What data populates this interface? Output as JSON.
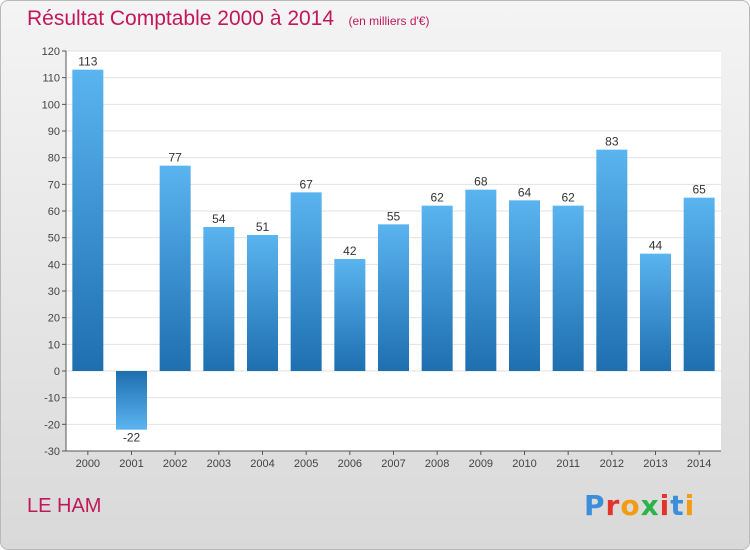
{
  "chart_data": {
    "type": "bar",
    "title": "Résultat Comptable 2000 à 2014",
    "subtitle": "(en milliers d'€)",
    "categories": [
      "2000",
      "2001",
      "2002",
      "2003",
      "2004",
      "2005",
      "2006",
      "2007",
      "2008",
      "2009",
      "2010",
      "2011",
      "2012",
      "2013",
      "2014"
    ],
    "values": [
      113,
      -22,
      77,
      54,
      51,
      67,
      42,
      55,
      62,
      68,
      64,
      62,
      83,
      44,
      65
    ],
    "ylim": [
      -30,
      120
    ],
    "yticks": [
      -30,
      -20,
      -10,
      0,
      10,
      20,
      30,
      40,
      50,
      60,
      70,
      80,
      90,
      100,
      110,
      120
    ],
    "grid": true,
    "colors": {
      "bar_light": "#5ab4ef",
      "bar_dark": "#1e6fb0",
      "grid": "#e2e2e2",
      "axis": "#555555"
    }
  },
  "footer": {
    "commune": "LE HAM",
    "logo_text": "Proxiti",
    "logo_colors": [
      "#3b8fd9",
      "#e2342d",
      "#f39c12",
      "#2bb34a",
      "#e2342d",
      "#3b8fd9",
      "#f39c12"
    ]
  }
}
